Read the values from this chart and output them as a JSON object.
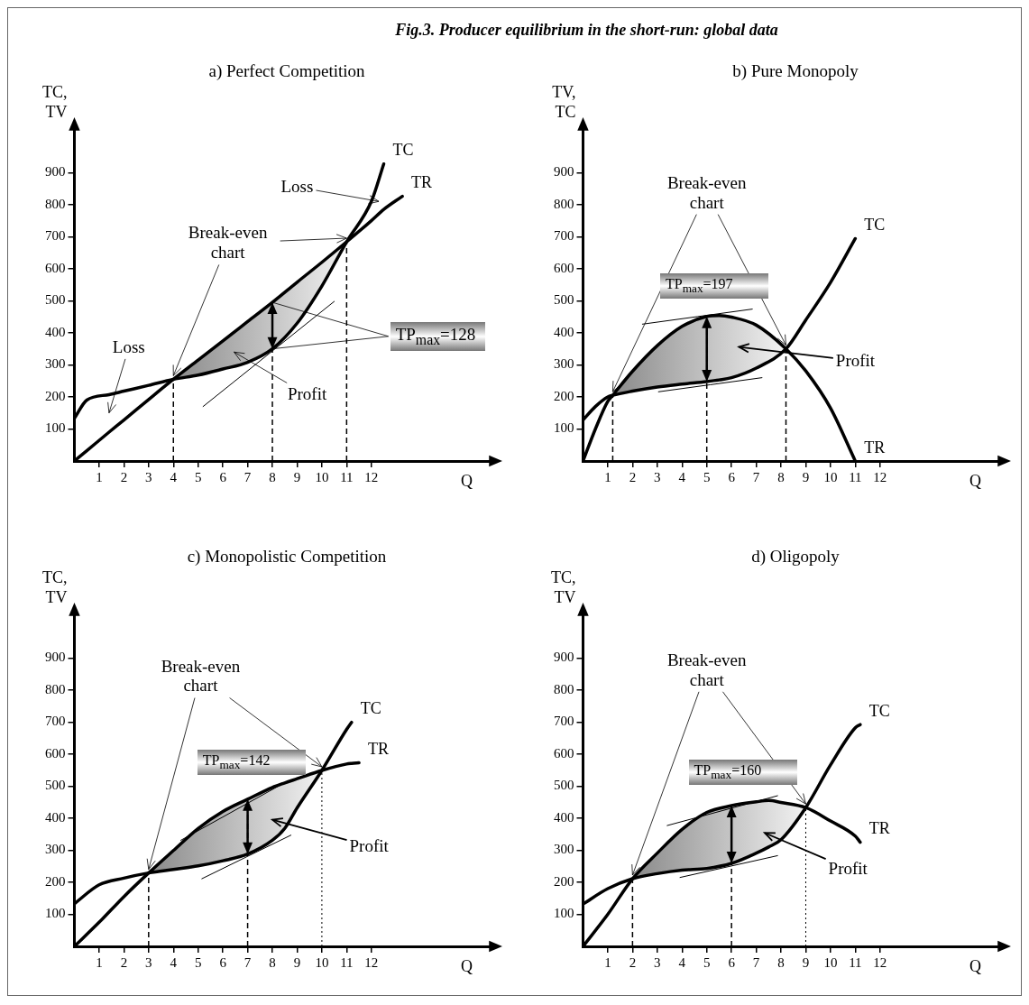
{
  "chart_data": [
    {
      "type": "line",
      "title": "Fig.3. Producer equilibrium in the short-run: global data",
      "subtitle": "a) Perfect Competition",
      "xlabel": "Q",
      "ylabel": "TC, TV",
      "x": [
        0,
        0.5,
        1.4,
        2,
        3,
        4,
        5,
        6,
        7,
        8,
        9,
        10,
        11,
        12,
        12.5,
        13.25
      ],
      "series": [
        {
          "name": "TC",
          "color": "#000000",
          "values": [
            133,
            190,
            207,
            218,
            236,
            255,
            268,
            287,
            308,
            350,
            430,
            546,
            684,
            810,
            927,
            null
          ]
        },
        {
          "name": "TR",
          "color": "#000000",
          "values": [
            0,
            32,
            90,
            128,
            192,
            255,
            315,
            375,
            435,
            495,
            558,
            620,
            684,
            750,
            785,
            826
          ]
        },
        {
          "color": "#000000",
          "x": [
            5.2,
            10.5
          ],
          "values": [
            170,
            498
          ]
        }
      ],
      "xlim": [
        0,
        17
      ],
      "xticks": [
        1,
        2,
        3,
        4,
        5,
        6,
        7,
        8,
        9,
        10,
        11,
        12
      ],
      "ylim": [
        0,
        1050
      ],
      "yticks": [
        100,
        200,
        300,
        400,
        500,
        600,
        700,
        800,
        900
      ],
      "ref_lines": [
        {
          "axis": "x",
          "value": 4,
          "line_style": "dashed"
        },
        {
          "axis": "x",
          "value": 8,
          "line_style": "dashed"
        },
        {
          "axis": "x",
          "value": 11,
          "line_style": "dashed"
        }
      ],
      "annotations": [
        "Loss",
        {
          "text": "Break-even chart",
          "x": 4,
          "y": 255
        },
        "Loss",
        "Profit",
        {
          "text": "TP$_{max}$=128",
          "x": 8,
          "y": 495
        }
      ]
    },
    {
      "type": "line",
      "title": "b) Pure Monopoly",
      "xlabel": "Q",
      "ylabel": "TV, TC",
      "x": [
        0,
        0.5,
        1,
        1.2,
        2,
        3,
        4,
        5,
        5.5,
        6,
        7,
        8.2,
        9,
        10,
        11
      ],
      "series": [
        {
          "name": "TC",
          "color": "#000000",
          "values": [
            128,
            170,
            200,
            205,
            218,
            231,
            240,
            248,
            253,
            260,
            290,
            350,
            440,
            557,
            694
          ]
        },
        {
          "name": "TR",
          "color": "#000000",
          "values": [
            0,
            100,
            186,
            205,
            280,
            360,
            420,
            451,
            454,
            449,
            424,
            350,
            281,
            165,
            0
          ]
        },
        {
          "color": "#000000",
          "x": [
            2.4,
            6.84
          ],
          "values": [
            427,
            474
          ]
        },
        {
          "color": "#000000",
          "x": [
            3.05,
            7.23
          ],
          "values": [
            216,
            260
          ]
        }
      ],
      "xlim": [
        0,
        17
      ],
      "xticks": [
        1,
        2,
        3,
        4,
        5,
        6,
        7,
        8,
        9,
        10,
        11,
        12
      ],
      "ylim": [
        0,
        1050
      ],
      "yticks": [
        100,
        200,
        300,
        400,
        500,
        600,
        700,
        800,
        900
      ],
      "ref_lines": [
        {
          "axis": "x",
          "value": 1.2,
          "line_style": "dashed"
        },
        {
          "axis": "x",
          "value": 5,
          "line_style": "dashed"
        },
        {
          "axis": "x",
          "value": 8.2,
          "line_style": "dashed"
        }
      ],
      "annotations": [
        {
          "text": "Break-even chart",
          "x": 8.2,
          "y": 350
        },
        "TP$_{max}$=197",
        "Profit"
      ]
    },
    {
      "type": "line",
      "title": "c) Monopolistic Competition",
      "xlabel": "Q",
      "ylabel": "TC, TV",
      "x": [
        0,
        1,
        2,
        3,
        4,
        5,
        6,
        7,
        8,
        8.5,
        9,
        10,
        11,
        11.2,
        11.5
      ],
      "series": [
        {
          "name": "TC",
          "color": "#000000",
          "values": [
            133,
            192,
            213,
            229,
            240,
            251,
            267,
            288,
            331,
            368,
            432,
            549,
            677,
            699,
            null
          ]
        },
        {
          "name": "TR",
          "color": "#000000",
          "values": [
            0,
            75,
            155,
            229,
            299,
            368,
            421,
            459,
            496,
            510,
            523,
            549,
            569,
            571,
            573
          ]
        },
        {
          "color": "#000000",
          "x": [
            4.3,
            8.2
          ],
          "values": [
            331,
            498
          ]
        },
        {
          "color": "#000000",
          "x": [
            5.15,
            8.75
          ],
          "values": [
            211,
            347
          ]
        }
      ],
      "xlim": [
        0,
        17
      ],
      "xticks": [
        1,
        2,
        3,
        4,
        5,
        6,
        7,
        8,
        9,
        10,
        11,
        12
      ],
      "ylim": [
        0,
        1050
      ],
      "yticks": [
        100,
        200,
        300,
        400,
        500,
        600,
        700,
        800,
        900
      ],
      "ref_lines": [
        {
          "axis": "x",
          "value": 3,
          "line_style": "dashed"
        },
        {
          "axis": "x",
          "value": 7,
          "line_style": "dashed"
        },
        {
          "axis": "x",
          "value": 10,
          "line_style": "dotted"
        }
      ],
      "annotations": [
        {
          "text": "Break-even chart",
          "x": 10,
          "y": 549
        },
        "TP$_{max}$=142",
        "Profit"
      ]
    },
    {
      "type": "line",
      "title": "d) Oligopoly",
      "xlabel": "Q",
      "ylabel": "TC, TV",
      "x": [
        0,
        1,
        2,
        3,
        4,
        5,
        6,
        7,
        7.5,
        8,
        9,
        10,
        11,
        11.2
      ],
      "series": [
        {
          "name": "TC",
          "color": "#000000",
          "values": [
            132,
            180,
            211,
            227,
            238,
            243,
            259,
            291,
            310,
            333,
            433,
            566,
            682,
            692
          ]
        },
        {
          "name": "TR",
          "color": "#000000",
          "values": [
            0,
            100,
            211,
            291,
            365,
            418,
            439,
            451,
            455,
            449,
            433,
            391,
            344,
            325
          ]
        },
        {
          "color": "#000000",
          "x": [
            3.4,
            7.86
          ],
          "values": [
            377,
            470
          ]
        },
        {
          "color": "#000000",
          "x": [
            3.92,
            7.86
          ],
          "values": [
            215,
            283
          ]
        }
      ],
      "xlim": [
        0,
        17
      ],
      "xticks": [
        1,
        2,
        3,
        4,
        5,
        6,
        7,
        8,
        9,
        10,
        11,
        12
      ],
      "ylim": [
        0,
        1050
      ],
      "yticks": [
        100,
        200,
        300,
        400,
        500,
        600,
        700,
        800,
        900
      ],
      "ref_lines": [
        {
          "axis": "x",
          "value": 2,
          "line_style": "dashed"
        },
        {
          "axis": "x",
          "value": 6,
          "line_style": "dashed"
        },
        {
          "axis": "x",
          "value": 9,
          "line_style": "dotted"
        }
      ],
      "annotations": [
        {
          "text": "Break-even chart",
          "x": 9,
          "y": 433
        },
        "TP$_{max}$=160",
        "Profit"
      ]
    }
  ]
}
